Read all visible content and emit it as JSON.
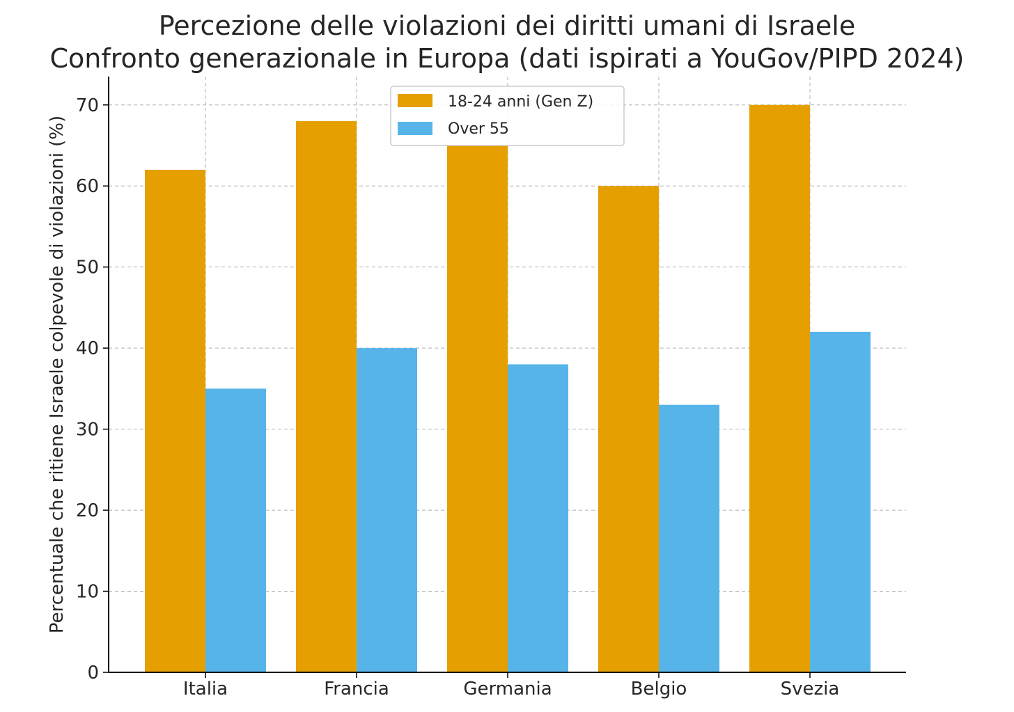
{
  "chart_data": {
    "type": "bar",
    "title": [
      "Percezione delle violazioni dei diritti umani di Israele",
      "Confronto generazionale in Europa (dati ispirati a YouGov/PIPD 2024)"
    ],
    "xlabel": "",
    "ylabel": "Percentuale che ritiene Israele colpevole di violazioni (%)",
    "categories": [
      "Italia",
      "Francia",
      "Germania",
      "Belgio",
      "Svezia"
    ],
    "series": [
      {
        "name": "18-24 anni (Gen Z)",
        "values": [
          62,
          68,
          65,
          60,
          70
        ],
        "color": "#e69f00"
      },
      {
        "name": "Over 55",
        "values": [
          35,
          40,
          38,
          33,
          42
        ],
        "color": "#56b4e9"
      }
    ],
    "ylim": [
      0,
      73.5
    ],
    "yticks": [
      0,
      10,
      20,
      30,
      40,
      50,
      60,
      70
    ],
    "grid": true,
    "legend_position": "top-center"
  }
}
